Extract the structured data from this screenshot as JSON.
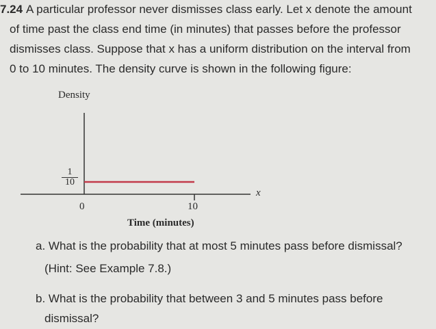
{
  "problem": {
    "number": "7.24",
    "lines": [
      "A particular professor never dismisses class early. Let x denote the amount",
      "of time past the class end time (in minutes) that passes before the professor",
      "dismisses class. Suppose that x has a uniform distribution on the interval from",
      "0 to 10 minutes. The density curve is shown in the following figure:"
    ],
    "figure": {
      "y_label": "Density",
      "density_numerator": "1",
      "density_denominator": "10",
      "x_var": "x",
      "x_tick_start": "0",
      "x_tick_end": "10",
      "x_label": "Time (minutes)"
    },
    "part_a": "a. What is the probability that at most 5 minutes pass before dismissal?",
    "hint": "(Hint: See Example 7.8.)",
    "part_b_lines": [
      "b. What is the probability that between 3 and 5 minutes pass before",
      "dismissal?"
    ]
  }
}
